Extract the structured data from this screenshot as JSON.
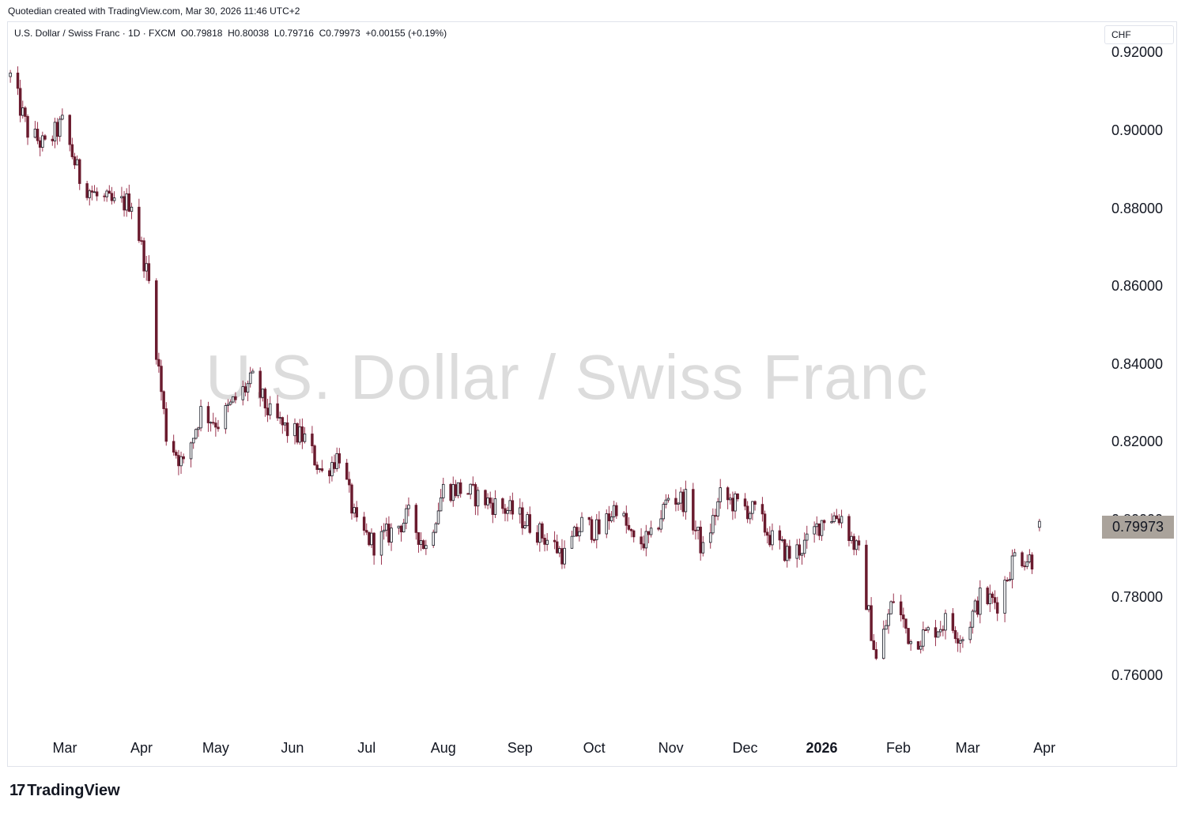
{
  "header": {
    "attribution": "Quotedian created with TradingView.com, Mar 30, 2026 11:46 UTC+2"
  },
  "legend": {
    "symbol": "U.S. Dollar / Swiss Franc · 1D · FXCM",
    "open": "O0.79818",
    "high": "H0.80038",
    "low": "L0.79716",
    "close": "C0.79973",
    "change": "+0.00155 (+0.19%)"
  },
  "currency_button": "CHF",
  "watermark": "U.S. Dollar / Swiss Franc",
  "last_price_label": "0.79973",
  "logo_text": "TradingView",
  "colors": {
    "up": "#131722",
    "down": "#6a1b2e",
    "wick": "#9b3550",
    "last_box": "#aaa39b"
  },
  "chart_data": {
    "type": "candlestick",
    "y_axis": {
      "ticks": [
        "0.92000",
        "0.90000",
        "0.88000",
        "0.86000",
        "0.84000",
        "0.82000",
        "0.80000",
        "0.78000",
        "0.76000"
      ],
      "range": [
        0.747,
        0.928
      ]
    },
    "x_axis": {
      "ticks": [
        "Mar",
        "Apr",
        "May",
        "Jun",
        "Jul",
        "Aug",
        "Sep",
        "Oct",
        "Nov",
        "Dec",
        "2026",
        "Feb",
        "Mar",
        "Apr"
      ],
      "tick_dates": [
        "2025-03-01",
        "2025-04-01",
        "2025-05-01",
        "2025-06-01",
        "2025-07-01",
        "2025-08-01",
        "2025-09-01",
        "2025-10-01",
        "2025-11-01",
        "2025-12-01",
        "2026-01-01",
        "2026-02-01",
        "2026-03-01",
        "2026-04-01"
      ],
      "range": [
        "2025-02-06",
        "2026-04-23"
      ]
    },
    "closes": [
      [
        "2025-02-07",
        0.914
      ],
      [
        "2025-02-14",
        0.9
      ],
      [
        "2025-02-21",
        0.896
      ],
      [
        "2025-02-28",
        0.902
      ],
      [
        "2025-03-07",
        0.888
      ],
      [
        "2025-03-14",
        0.883
      ],
      [
        "2025-03-21",
        0.881
      ],
      [
        "2025-03-28",
        0.882
      ],
      [
        "2025-04-04",
        0.861
      ],
      [
        "2025-04-11",
        0.822
      ],
      [
        "2025-04-18",
        0.814
      ],
      [
        "2025-04-25",
        0.828
      ],
      [
        "2025-05-02",
        0.825
      ],
      [
        "2025-05-09",
        0.831
      ],
      [
        "2025-05-16",
        0.836
      ],
      [
        "2025-05-23",
        0.827
      ],
      [
        "2025-05-30",
        0.823
      ],
      [
        "2025-06-06",
        0.821
      ],
      [
        "2025-06-13",
        0.812
      ],
      [
        "2025-06-20",
        0.817
      ],
      [
        "2025-06-27",
        0.798
      ],
      [
        "2025-07-04",
        0.794
      ],
      [
        "2025-07-11",
        0.797
      ],
      [
        "2025-07-18",
        0.801
      ],
      [
        "2025-07-25",
        0.793
      ],
      [
        "2025-08-01",
        0.808
      ],
      [
        "2025-08-08",
        0.808
      ],
      [
        "2025-08-15",
        0.806
      ],
      [
        "2025-08-22",
        0.804
      ],
      [
        "2025-08-29",
        0.802
      ],
      [
        "2025-09-05",
        0.799
      ],
      [
        "2025-09-12",
        0.795
      ],
      [
        "2025-09-19",
        0.791
      ],
      [
        "2025-09-26",
        0.799
      ],
      [
        "2025-10-03",
        0.797
      ],
      [
        "2025-10-10",
        0.804
      ],
      [
        "2025-10-17",
        0.794
      ],
      [
        "2025-10-24",
        0.795
      ],
      [
        "2025-10-31",
        0.806
      ],
      [
        "2025-11-07",
        0.805
      ],
      [
        "2025-11-14",
        0.792
      ],
      [
        "2025-11-21",
        0.806
      ],
      [
        "2025-11-28",
        0.804
      ],
      [
        "2025-12-05",
        0.802
      ],
      [
        "2025-12-12",
        0.795
      ],
      [
        "2025-12-19",
        0.791
      ],
      [
        "2025-12-26",
        0.794
      ],
      [
        "2026-01-02",
        0.801
      ],
      [
        "2026-01-09",
        0.801
      ],
      [
        "2026-01-16",
        0.791
      ],
      [
        "2026-01-23",
        0.764
      ],
      [
        "2026-01-30",
        0.78
      ],
      [
        "2026-02-06",
        0.769
      ],
      [
        "2026-02-13",
        0.771
      ],
      [
        "2026-02-20",
        0.774
      ],
      [
        "2026-02-27",
        0.77
      ],
      [
        "2026-03-06",
        0.78
      ],
      [
        "2026-03-13",
        0.779
      ],
      [
        "2026-03-20",
        0.791
      ],
      [
        "2026-03-27",
        0.79
      ],
      [
        "2026-03-30",
        0.79973
      ]
    ],
    "last": {
      "open": 0.79818,
      "high": 0.80038,
      "low": 0.79716,
      "close": 0.79973
    }
  }
}
